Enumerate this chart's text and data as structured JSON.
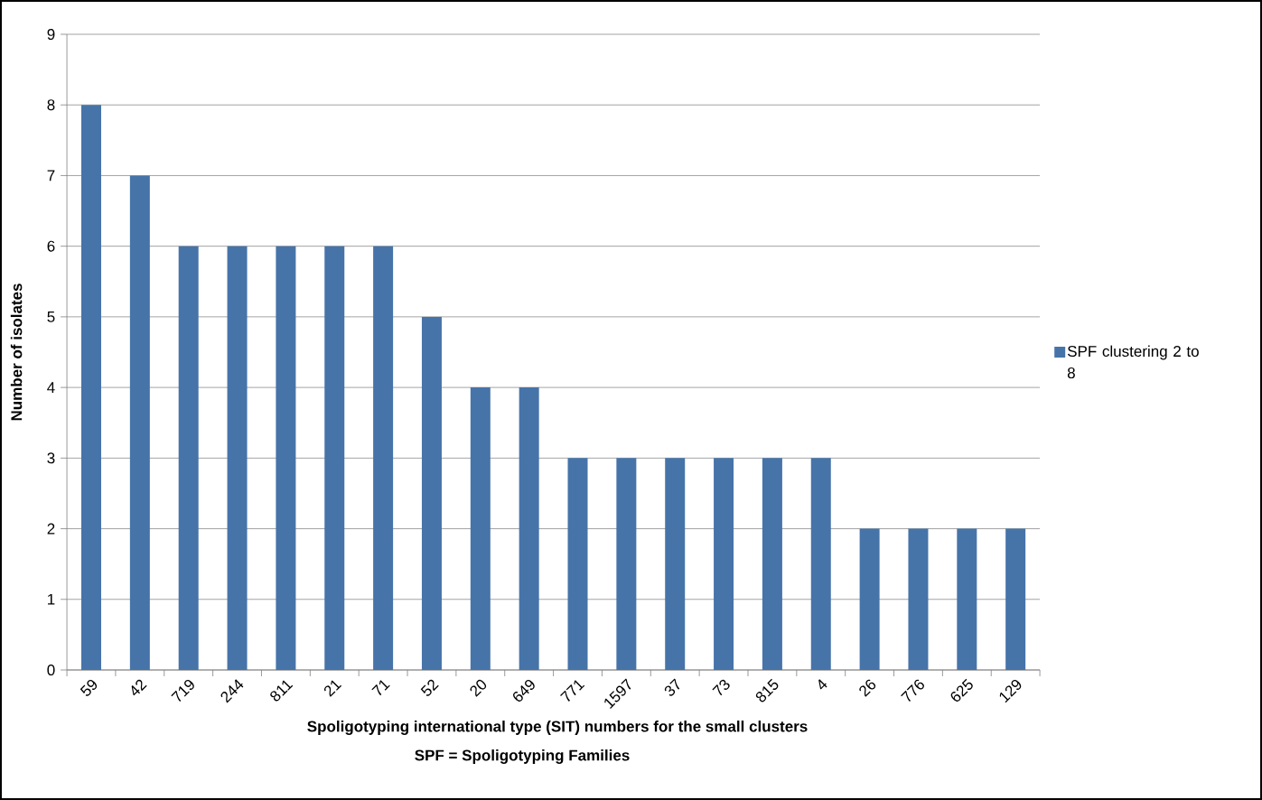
{
  "chart_data": {
    "type": "bar",
    "categories": [
      "59",
      "42",
      "719",
      "244",
      "811",
      "21",
      "71",
      "52",
      "20",
      "649",
      "771",
      "1597",
      "37",
      "73",
      "815",
      "4",
      "26",
      "776",
      "625",
      "129"
    ],
    "series": [
      {
        "name": "SPF clustering 2 to 8",
        "color": "#4674a9",
        "values": [
          8,
          7,
          6,
          6,
          6,
          6,
          6,
          5,
          4,
          4,
          3,
          3,
          3,
          3,
          3,
          3,
          2,
          2,
          2,
          2
        ]
      }
    ],
    "xlabel": "Spoligotyping international type (SIT) numbers for the small clusters",
    "ylabel": "Number  of isolates",
    "annotations": [
      "SPF = Spoligotyping Families"
    ],
    "ylim": [
      0,
      9
    ],
    "yticks": [
      0,
      1,
      2,
      3,
      4,
      5,
      6,
      7,
      8,
      9
    ],
    "grid": "y",
    "legend": "right"
  }
}
